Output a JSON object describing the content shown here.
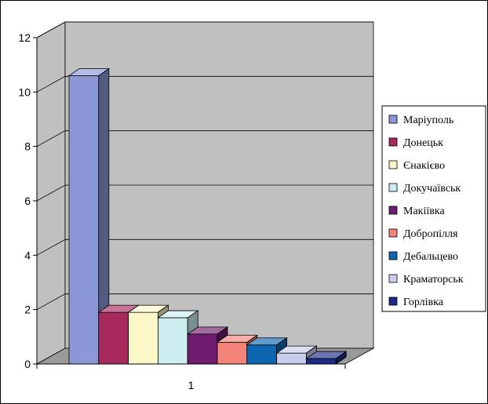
{
  "chart_data": {
    "type": "bar",
    "categories": [
      "1"
    ],
    "series": [
      {
        "name": "Маріуполь",
        "values": [
          10.6
        ],
        "color": "#8b97d6"
      },
      {
        "name": "Донецьк",
        "values": [
          1.9
        ],
        "color": "#a8295c"
      },
      {
        "name": "Єнакієво",
        "values": [
          1.9
        ],
        "color": "#fcf7c8"
      },
      {
        "name": "Докучаївськ",
        "values": [
          1.7
        ],
        "color": "#cdeef0"
      },
      {
        "name": "Макіївка",
        "values": [
          1.1
        ],
        "color": "#6f1c6f"
      },
      {
        "name": "Добропілля",
        "values": [
          0.8
        ],
        "color": "#f4847a"
      },
      {
        "name": "Дебальцево",
        "values": [
          0.7
        ],
        "color": "#0d66b0"
      },
      {
        "name": "Краматорськ",
        "values": [
          0.4
        ],
        "color": "#c9cdec"
      },
      {
        "name": "Горлівка",
        "values": [
          0.2
        ],
        "color": "#1b2a84"
      }
    ],
    "title": "",
    "xlabel": "",
    "ylabel": "",
    "ylim": [
      0,
      12
    ],
    "yticks": [
      "0",
      "2",
      "4",
      "6",
      "8",
      "10",
      "12"
    ],
    "grid": true,
    "legend": "right",
    "three_d": true,
    "wall_color": "#c0c0c0"
  }
}
